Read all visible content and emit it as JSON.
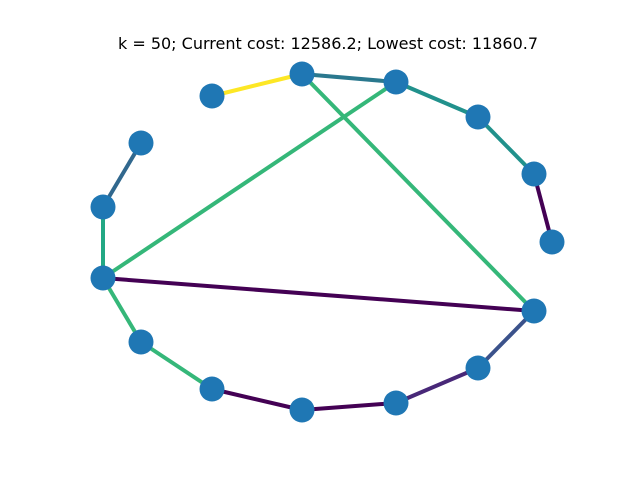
{
  "title": "k = 50; Current cost: 12586.2; Lowest cost: 11860.7",
  "node_color": "#1f77b4",
  "nodes": [
    {
      "id": "n0"
    },
    {
      "id": "n1"
    },
    {
      "id": "n2"
    },
    {
      "id": "n3"
    },
    {
      "id": "n4"
    },
    {
      "id": "n5"
    },
    {
      "id": "n6"
    },
    {
      "id": "n7"
    },
    {
      "id": "n8"
    },
    {
      "id": "n9"
    },
    {
      "id": "n10"
    },
    {
      "id": "n11"
    },
    {
      "id": "n12"
    },
    {
      "id": "n13"
    },
    {
      "id": "n14"
    }
  ],
  "edges": [
    {
      "from": "n0",
      "to": "n1",
      "color": "#fde725"
    },
    {
      "from": "n1",
      "to": "n2",
      "color": "#2a788e"
    },
    {
      "from": "n2",
      "to": "n3",
      "color": "#21918c"
    },
    {
      "from": "n3",
      "to": "n4",
      "color": "#21918c"
    },
    {
      "from": "n4",
      "to": "n5",
      "color": "#440154"
    },
    {
      "from": "n1",
      "to": "n6",
      "color": "#35b779"
    },
    {
      "from": "n2",
      "to": "n11",
      "color": "#35b779"
    },
    {
      "from": "n6",
      "to": "n7",
      "color": "#3b528b"
    },
    {
      "from": "n7",
      "to": "n8",
      "color": "#482878"
    },
    {
      "from": "n8",
      "to": "n9",
      "color": "#440154"
    },
    {
      "from": "n9",
      "to": "n10",
      "color": "#440154"
    },
    {
      "from": "n10",
      "to": "n12",
      "color": "#35b779"
    },
    {
      "from": "n12",
      "to": "n11",
      "color": "#35b779"
    },
    {
      "from": "n11",
      "to": "n6",
      "color": "#440154"
    },
    {
      "from": "n11",
      "to": "n13",
      "color": "#22a884"
    },
    {
      "from": "n13",
      "to": "n14",
      "color": "#31688e"
    }
  ]
}
